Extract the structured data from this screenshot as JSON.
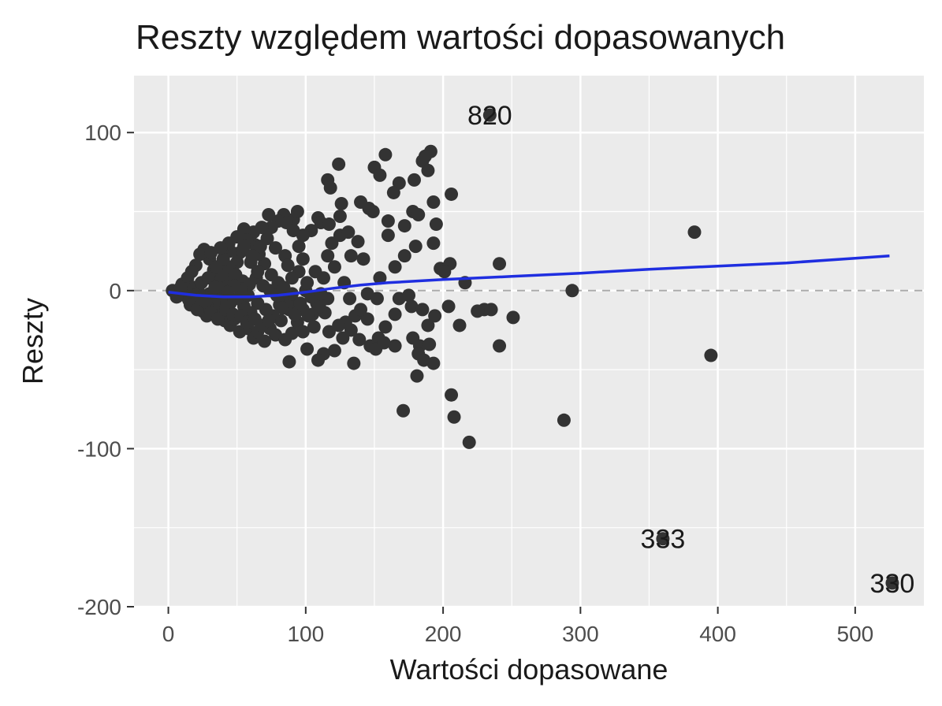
{
  "chart_data": {
    "type": "scatter",
    "title": "Reszty względem wartości dopasowanych",
    "xlabel": "Wartości dopasowane",
    "ylabel": "Reszty",
    "xlim": [
      -25,
      550
    ],
    "ylim": [
      -200,
      136
    ],
    "x_ticks": [
      0,
      100,
      200,
      300,
      400,
      500
    ],
    "y_ticks": [
      -200,
      -100,
      0,
      100
    ],
    "grid": true,
    "colors": {
      "points": "#333333",
      "smooth": "#1f2ee0",
      "reference": "#aaaaaa",
      "panel": "#ebebeb",
      "grid": "#ffffff"
    },
    "reference_line": {
      "y": 0,
      "style": "dashed"
    },
    "smooth": {
      "x": [
        0,
        20,
        40,
        60,
        80,
        100,
        120,
        140,
        160,
        180,
        200,
        250,
        300,
        350,
        400,
        450,
        500,
        525
      ],
      "y": [
        -1,
        -3,
        -4,
        -4,
        -3,
        -1,
        1.5,
        3.5,
        5,
        6,
        7,
        9,
        11,
        13.5,
        15.5,
        17.5,
        20.5,
        22
      ]
    },
    "points": [
      [
        234,
        111
      ],
      [
        383,
        37
      ],
      [
        395,
        -41
      ],
      [
        294,
        0
      ],
      [
        288,
        -82
      ],
      [
        219,
        -96
      ],
      [
        206,
        -66
      ],
      [
        208,
        -80
      ],
      [
        212,
        -22
      ],
      [
        230,
        -12
      ],
      [
        241,
        17
      ],
      [
        241,
        -35
      ],
      [
        251,
        -17
      ],
      [
        216,
        5
      ],
      [
        205,
        17
      ],
      [
        204,
        -10
      ],
      [
        235,
        -12
      ],
      [
        225,
        -13
      ],
      [
        360,
        -157
      ],
      [
        527,
        -185
      ],
      [
        191,
        88
      ],
      [
        187,
        85
      ],
      [
        185,
        82
      ],
      [
        189,
        76
      ],
      [
        179,
        70
      ],
      [
        168,
        68
      ],
      [
        158,
        86
      ],
      [
        150,
        78
      ],
      [
        154,
        73
      ],
      [
        164,
        62
      ],
      [
        140,
        56
      ],
      [
        146,
        52
      ],
      [
        149,
        50
      ],
      [
        124,
        80
      ],
      [
        116,
        70
      ],
      [
        118,
        65
      ],
      [
        126,
        55
      ],
      [
        109,
        46
      ],
      [
        111,
        43
      ],
      [
        104,
        38
      ],
      [
        117,
        42
      ],
      [
        125,
        47
      ],
      [
        193,
        56
      ],
      [
        206,
        61
      ],
      [
        195,
        42
      ],
      [
        193,
        30
      ],
      [
        198,
        14
      ],
      [
        201,
        12
      ],
      [
        160,
        35
      ],
      [
        160,
        44
      ],
      [
        172,
        41
      ],
      [
        178,
        50
      ],
      [
        182,
        48
      ],
      [
        180,
        28
      ],
      [
        172,
        22
      ],
      [
        165,
        15
      ],
      [
        154,
        8
      ],
      [
        152,
        -5
      ],
      [
        168,
        -5
      ],
      [
        175,
        -3
      ],
      [
        177,
        -10
      ],
      [
        185,
        -12
      ],
      [
        189,
        -22
      ],
      [
        178,
        -30
      ],
      [
        183,
        -35
      ],
      [
        190,
        -34
      ],
      [
        182,
        -40
      ],
      [
        186,
        -44
      ],
      [
        193,
        -46
      ],
      [
        181,
        -54
      ],
      [
        194,
        -16
      ],
      [
        171,
        -76
      ],
      [
        165,
        -15
      ],
      [
        158,
        -23
      ],
      [
        165,
        -35
      ],
      [
        153,
        -30
      ],
      [
        147,
        -35
      ],
      [
        151,
        -37
      ],
      [
        157,
        -33
      ],
      [
        139,
        -31
      ],
      [
        135,
        -46
      ],
      [
        133,
        -25
      ],
      [
        129,
        -20
      ],
      [
        127,
        -30
      ],
      [
        124,
        -22
      ],
      [
        121,
        -38
      ],
      [
        117,
        -26
      ],
      [
        113,
        -40
      ],
      [
        109,
        -44
      ],
      [
        101,
        -37
      ],
      [
        88,
        -45
      ],
      [
        136,
        -16
      ],
      [
        145,
        -18
      ],
      [
        132,
        -5
      ],
      [
        128,
        5
      ],
      [
        121,
        15
      ],
      [
        116,
        22
      ],
      [
        119,
        30
      ],
      [
        125,
        35
      ],
      [
        133,
        22
      ],
      [
        131,
        37
      ],
      [
        138,
        31
      ],
      [
        142,
        20
      ],
      [
        145,
        -2
      ],
      [
        140,
        -12
      ],
      [
        116,
        -5
      ],
      [
        114,
        -14
      ],
      [
        108,
        -8
      ],
      [
        105,
        -15
      ],
      [
        100,
        0
      ],
      [
        98,
        -12
      ],
      [
        95,
        12
      ],
      [
        98,
        20
      ],
      [
        95,
        28
      ],
      [
        98,
        35
      ],
      [
        91,
        45
      ],
      [
        94,
        50
      ],
      [
        84,
        48
      ],
      [
        86,
        43
      ],
      [
        91,
        38
      ],
      [
        80,
        44
      ],
      [
        75,
        40
      ],
      [
        72,
        33
      ],
      [
        78,
        27
      ],
      [
        85,
        22
      ],
      [
        87,
        16
      ],
      [
        90,
        8
      ],
      [
        80,
        5
      ],
      [
        75,
        10
      ],
      [
        70,
        17
      ],
      [
        66,
        23
      ],
      [
        63,
        29
      ],
      [
        62,
        37
      ],
      [
        55,
        39
      ],
      [
        57,
        32
      ],
      [
        52,
        24
      ],
      [
        50,
        18
      ],
      [
        47,
        12
      ],
      [
        45,
        6
      ],
      [
        40,
        3
      ],
      [
        36,
        8
      ],
      [
        33,
        13
      ],
      [
        30,
        20
      ],
      [
        26,
        26
      ],
      [
        23,
        23
      ],
      [
        20,
        16
      ],
      [
        17,
        12
      ],
      [
        14,
        8
      ],
      [
        10,
        4
      ],
      [
        8,
        0
      ],
      [
        5,
        -1
      ],
      [
        3,
        0
      ],
      [
        12,
        -3
      ],
      [
        15,
        -6
      ],
      [
        20,
        -9
      ],
      [
        25,
        -13
      ],
      [
        28,
        -16
      ],
      [
        32,
        -10
      ],
      [
        37,
        -14
      ],
      [
        41,
        -19
      ],
      [
        45,
        -22
      ],
      [
        48,
        -18
      ],
      [
        52,
        -26
      ],
      [
        58,
        -24
      ],
      [
        62,
        -30
      ],
      [
        65,
        -26
      ],
      [
        70,
        -32
      ],
      [
        74,
        -24
      ],
      [
        78,
        -28
      ],
      [
        82,
        -19
      ],
      [
        85,
        -31
      ],
      [
        90,
        -27
      ],
      [
        94,
        -20
      ],
      [
        98,
        -26
      ],
      [
        102,
        -16
      ],
      [
        106,
        -23
      ],
      [
        110,
        -10
      ],
      [
        71,
        -12
      ],
      [
        76,
        -16
      ],
      [
        81,
        -9
      ],
      [
        86,
        -5
      ],
      [
        65,
        -8
      ],
      [
        60,
        -14
      ],
      [
        55,
        -10
      ],
      [
        50,
        -5
      ],
      [
        45,
        -8
      ],
      [
        40,
        -4
      ],
      [
        35,
        -5
      ],
      [
        30,
        -2
      ],
      [
        26,
        -4
      ],
      [
        22,
        -1
      ],
      [
        18,
        2
      ],
      [
        24,
        5
      ],
      [
        29,
        8
      ],
      [
        34,
        2
      ],
      [
        39,
        10
      ],
      [
        44,
        15
      ],
      [
        49,
        10
      ],
      [
        54,
        6
      ],
      [
        59,
        4
      ],
      [
        64,
        8
      ],
      [
        69,
        3
      ],
      [
        74,
        0
      ],
      [
        79,
        -3
      ],
      [
        84,
        2
      ],
      [
        89,
        -6
      ],
      [
        60,
        18
      ],
      [
        65,
        12
      ],
      [
        58,
        -3
      ],
      [
        53,
        1
      ],
      [
        48,
        3
      ],
      [
        43,
        -1
      ],
      [
        38,
        -6
      ],
      [
        33,
        -8
      ],
      [
        28,
        -10
      ],
      [
        23,
        -6
      ],
      [
        18,
        -3
      ],
      [
        13,
        1
      ],
      [
        9,
        2
      ],
      [
        6,
        -4
      ],
      [
        16,
        -9
      ],
      [
        21,
        -12
      ],
      [
        27,
        -7
      ],
      [
        31,
        -14
      ],
      [
        36,
        -18
      ],
      [
        42,
        -12
      ],
      [
        47,
        -15
      ],
      [
        53,
        -16
      ],
      [
        57,
        -20
      ],
      [
        63,
        -18
      ],
      [
        68,
        -22
      ],
      [
        73,
        -19
      ],
      [
        88,
        -12
      ],
      [
        92,
        -15
      ],
      [
        96,
        -8
      ],
      [
        101,
        5
      ],
      [
        104,
        -4
      ],
      [
        107,
        12
      ],
      [
        111,
        -2
      ],
      [
        113,
        8
      ],
      [
        55,
        28
      ],
      [
        45,
        25
      ],
      [
        40,
        20
      ],
      [
        35,
        15
      ],
      [
        31,
        24
      ],
      [
        68,
        40
      ],
      [
        73,
        48
      ],
      [
        67,
        28
      ],
      [
        61,
        22
      ],
      [
        50,
        34
      ],
      [
        44,
        30
      ],
      [
        38,
        27
      ],
      [
        90,
        -2
      ],
      [
        83,
        -11
      ]
    ],
    "labeled_points": [
      {
        "x": 234,
        "y": 111,
        "label": "820"
      },
      {
        "x": 360,
        "y": -157,
        "label": "333"
      },
      {
        "x": 527,
        "y": -185,
        "label": "330"
      }
    ]
  }
}
